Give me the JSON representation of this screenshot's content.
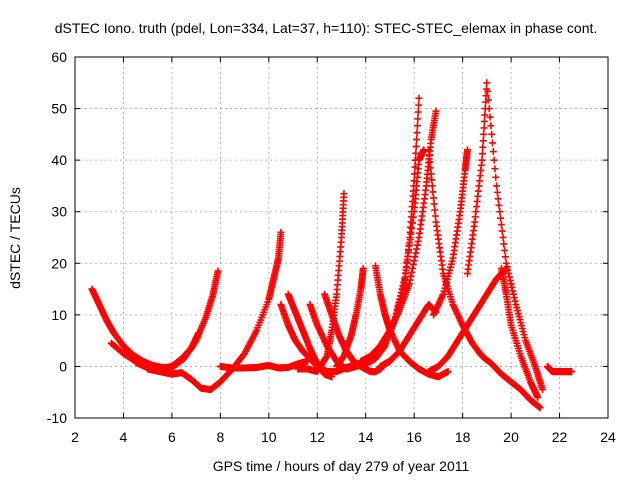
{
  "chart_data": {
    "type": "scatter",
    "title": "dSTEC Iono. truth (pdel, Lon=334, Lat=37, h=110): STEC-STEC_elemax in phase cont.",
    "xlabel": "GPS time / hours of day 279 of year 2011",
    "ylabel": "dSTEC  / TECUs",
    "xlim": [
      2,
      24
    ],
    "ylim": [
      -10,
      60
    ],
    "xticks": [
      2,
      4,
      6,
      8,
      10,
      12,
      14,
      16,
      18,
      20,
      22,
      24
    ],
    "yticks": [
      -10,
      0,
      10,
      20,
      30,
      40,
      50,
      60
    ],
    "grid": true,
    "marker": "+",
    "color": "#ff0000",
    "series": [
      {
        "x": [
          2.7,
          3.0,
          3.3,
          3.6,
          4.0,
          4.4,
          4.8,
          5.2,
          5.6,
          6.0
        ],
        "y": [
          15,
          12,
          9,
          6.5,
          4,
          2.2,
          1,
          0.2,
          -0.2,
          -0.4
        ]
      },
      {
        "x": [
          3.5,
          4.0,
          4.5,
          5.0,
          5.5,
          6.0,
          6.4,
          6.8,
          7.1
        ],
        "y": [
          4.5,
          2.5,
          1,
          0,
          -0.5,
          0,
          1.5,
          3.5,
          6.5
        ]
      },
      {
        "x": [
          4.5,
          5.0,
          5.5,
          6.0,
          6.5,
          7.0,
          7.4,
          7.7,
          7.9
        ],
        "y": [
          0.8,
          -0.3,
          -0.8,
          -0.2,
          1.5,
          5,
          9.5,
          14,
          18.5
        ]
      },
      {
        "x": [
          5.0,
          5.5,
          6.0,
          6.4,
          6.8,
          7.2,
          7.6,
          8.0,
          8.5,
          9.0,
          9.5,
          10.0,
          10.2,
          10.4,
          10.5
        ],
        "y": [
          -0.5,
          -1,
          -1.5,
          -1.2,
          -2.5,
          -4.2,
          -4.5,
          -3,
          -0.5,
          2.5,
          7,
          13,
          17,
          21,
          26
        ]
      },
      {
        "x": [
          8.0,
          8.5,
          9.0,
          9.5,
          10.0,
          10.4,
          10.8,
          11.2,
          11.6
        ],
        "y": [
          0,
          -0.3,
          -0.3,
          -0.2,
          0.2,
          -0.3,
          -0.2,
          0.5,
          1
        ]
      },
      {
        "x": [
          10.5,
          10.8,
          11.1,
          11.4,
          11.7,
          12.0,
          12.4,
          12.8,
          13.2,
          13.6,
          13.8
        ],
        "y": [
          12,
          8,
          5,
          3,
          1.5,
          0,
          -1,
          -1,
          -0.2,
          0.3,
          0.5
        ]
      },
      {
        "x": [
          10.8,
          11.1,
          11.4,
          11.7,
          12.0,
          12.3,
          12.6
        ],
        "y": [
          14,
          10.5,
          7,
          3.5,
          0.5,
          -1.5,
          -2
        ]
      },
      {
        "x": [
          11.2,
          11.6,
          12.0,
          12.4,
          12.6,
          12.8,
          13.0,
          13.1
        ],
        "y": [
          -0.5,
          -0.5,
          -1,
          2,
          7,
          14,
          25,
          33.5
        ]
      },
      {
        "x": [
          11.7,
          12.0,
          12.4,
          12.8,
          13.2,
          13.6,
          14.0,
          14.4,
          14.8,
          15.2,
          15.6,
          15.8,
          16.0,
          16.2
        ],
        "y": [
          12,
          8,
          4,
          1,
          -0.5,
          0.2,
          1,
          2.5,
          5,
          9,
          16,
          24,
          36,
          52
        ]
      },
      {
        "x": [
          12.3,
          12.6,
          12.9,
          13.2,
          13.5,
          13.8,
          14.0,
          14.2,
          14.4,
          14.6,
          14.8,
          15.0
        ],
        "y": [
          14,
          10,
          6,
          3,
          1,
          0,
          -0.5,
          -1,
          -1,
          -0.5,
          0.5,
          1
        ]
      },
      {
        "x": [
          12.8,
          13.1,
          13.4,
          13.6,
          13.8,
          13.9
        ],
        "y": [
          0,
          2,
          6,
          10,
          15,
          19
        ]
      },
      {
        "x": [
          13.2,
          13.6,
          14.0,
          14.4,
          14.8,
          15.2,
          15.6,
          16.0,
          16.2,
          16.4
        ],
        "y": [
          -0.5,
          0,
          0.5,
          1.5,
          4,
          9,
          17,
          30,
          40,
          42
        ]
      },
      {
        "x": [
          14.4,
          14.6,
          14.8,
          15.0,
          15.4,
          15.8,
          16.2,
          16.6,
          17.0,
          17.4
        ],
        "y": [
          19.5,
          14,
          10,
          7,
          3,
          1,
          -0.5,
          -1.5,
          -2,
          -1
        ]
      },
      {
        "x": [
          13.8,
          14.2,
          14.6,
          15.0,
          15.4,
          15.8,
          16.2,
          16.5,
          16.7,
          16.9
        ],
        "y": [
          1,
          2,
          4,
          7,
          11,
          16,
          25,
          35,
          44,
          49.5
        ]
      },
      {
        "x": [
          14.6,
          15.0,
          15.4,
          15.8,
          16.2,
          16.6,
          16.9
        ],
        "y": [
          0,
          1,
          3,
          6,
          9,
          12,
          10.5
        ]
      },
      {
        "x": [
          16.6,
          16.9,
          17.2,
          17.6,
          18.0,
          18.4,
          18.8,
          19.2,
          19.6,
          20.0,
          20.4,
          20.8,
          21.2
        ],
        "y": [
          42,
          28,
          18,
          12,
          8,
          4.5,
          2,
          0.5,
          -1.5,
          -3,
          -4.5,
          -6.5,
          -8
        ]
      },
      {
        "x": [
          16.8,
          17.2,
          17.6,
          17.9,
          18.1,
          18.2
        ],
        "y": [
          10,
          14,
          21,
          30,
          38,
          42
        ]
      },
      {
        "x": [
          16.6,
          17.0,
          17.4,
          17.8,
          18.2,
          18.6,
          19.0,
          19.4,
          19.8
        ],
        "y": [
          -1,
          0,
          2,
          5,
          8,
          11,
          14,
          17,
          19
        ]
      },
      {
        "x": [
          18.2,
          18.5,
          18.8,
          19.0,
          19.4,
          19.8,
          20.2,
          20.6,
          21.0,
          21.3
        ],
        "y": [
          18,
          28,
          40,
          55,
          35,
          20,
          12,
          5,
          0,
          -4.5
        ]
      },
      {
        "x": [
          19.6,
          19.8,
          20.0,
          20.4,
          20.8,
          21.1
        ],
        "y": [
          19,
          14,
          8,
          2,
          -3,
          -6
        ]
      },
      {
        "x": [
          21.5,
          21.7,
          22.0,
          22.3,
          22.5
        ],
        "y": [
          0,
          -1,
          -1,
          -1,
          -1
        ]
      }
    ]
  }
}
